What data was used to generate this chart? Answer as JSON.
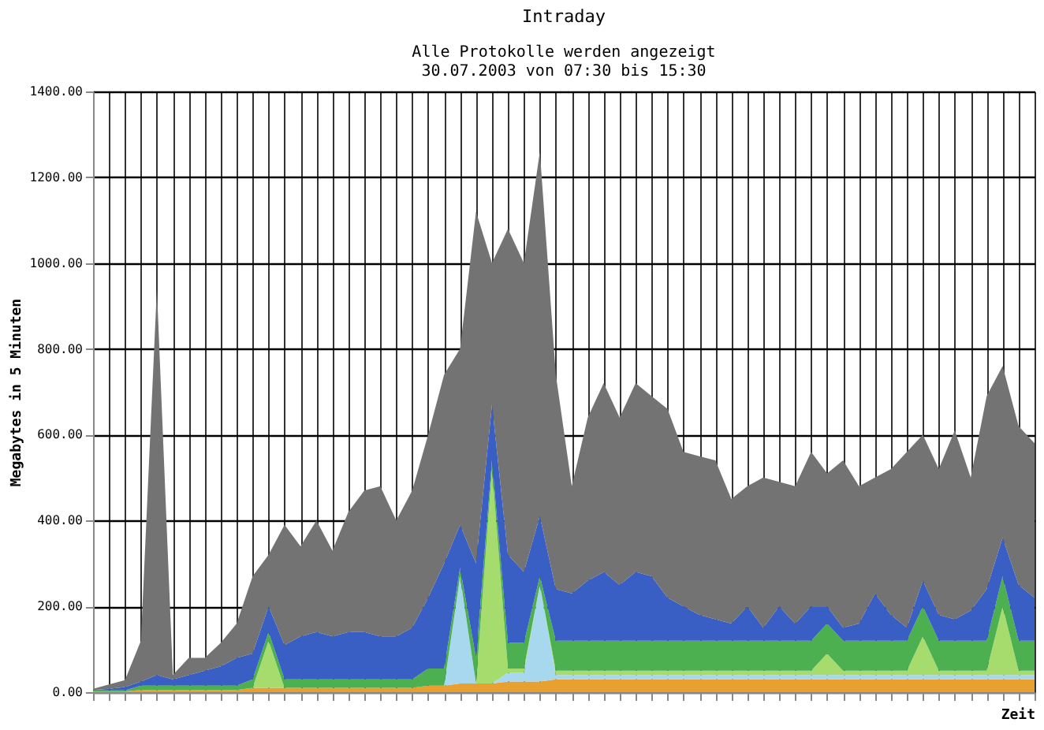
{
  "chart_data": {
    "type": "area",
    "stacked": true,
    "title": "Intraday",
    "subtitle": "Alle Protokolle werden angezeigt\n30.07.2003 von 07:30 bis 15:30",
    "xlabel": "Zeit",
    "ylabel": "Megabytes in 5 Minuten",
    "categories": [
      null,
      null,
      null,
      null,
      null,
      null,
      null,
      null,
      null,
      null,
      null,
      null,
      null,
      null,
      null,
      null,
      null,
      null,
      null,
      null,
      null,
      null,
      null,
      null,
      null,
      null,
      null,
      null,
      null,
      null,
      null,
      null,
      null,
      null,
      null,
      null,
      null,
      null,
      null,
      null,
      null,
      null,
      null,
      null,
      null,
      null,
      null,
      null,
      null,
      null,
      null,
      null,
      null,
      null,
      null,
      null,
      null,
      null,
      null,
      null
    ],
    "tick_labels": "y",
    "grid": true,
    "legend": false,
    "ylim": [
      0,
      1400
    ],
    "yticks": [
      {
        "value": 0,
        "label": "0.00"
      },
      {
        "value": 200,
        "label": "200.00"
      },
      {
        "value": 400,
        "label": "400.00"
      },
      {
        "value": 600,
        "label": "600.00"
      },
      {
        "value": 800,
        "label": "800.00"
      },
      {
        "value": 1000,
        "label": "1000.00"
      },
      {
        "value": 1200,
        "label": "1200.00"
      },
      {
        "value": 1400,
        "label": "1400.00"
      }
    ],
    "series": [
      {
        "color": "#e8a030",
        "values": [
          2,
          2,
          2,
          5,
          5,
          5,
          5,
          5,
          5,
          5,
          10,
          10,
          10,
          10,
          10,
          10,
          10,
          10,
          10,
          10,
          10,
          15,
          15,
          20,
          20,
          20,
          25,
          25,
          25,
          30,
          30,
          30,
          30,
          30,
          30,
          30,
          30,
          30,
          30,
          30,
          30,
          30,
          30,
          30,
          30,
          30,
          30,
          30,
          30,
          30,
          30,
          30,
          30,
          30,
          30,
          30,
          30,
          30,
          30,
          30
        ]
      },
      {
        "color": "#a8d8ee",
        "values": [
          0,
          0,
          0,
          0,
          0,
          0,
          0,
          0,
          0,
          0,
          0,
          0,
          0,
          0,
          0,
          0,
          0,
          0,
          0,
          0,
          0,
          0,
          0,
          250,
          0,
          0,
          20,
          20,
          225,
          10,
          10,
          10,
          10,
          10,
          10,
          10,
          10,
          10,
          10,
          10,
          10,
          10,
          10,
          10,
          10,
          10,
          10,
          10,
          10,
          10,
          10,
          10,
          10,
          10,
          10,
          10,
          10,
          10,
          10,
          10
        ]
      },
      {
        "color": "#a6dc6e",
        "values": [
          0,
          0,
          0,
          0,
          0,
          0,
          0,
          0,
          0,
          0,
          0,
          110,
          0,
          0,
          0,
          0,
          0,
          0,
          0,
          0,
          0,
          0,
          0,
          0,
          0,
          500,
          10,
          10,
          0,
          10,
          10,
          10,
          10,
          10,
          10,
          10,
          10,
          10,
          10,
          10,
          10,
          10,
          10,
          10,
          10,
          10,
          50,
          10,
          10,
          10,
          10,
          10,
          90,
          10,
          10,
          10,
          10,
          160,
          10,
          10
        ]
      },
      {
        "color": "#4caf50",
        "values": [
          2,
          2,
          2,
          10,
          10,
          10,
          10,
          10,
          10,
          10,
          20,
          20,
          20,
          20,
          20,
          20,
          20,
          20,
          20,
          20,
          20,
          40,
          40,
          20,
          60,
          20,
          60,
          60,
          20,
          70,
          70,
          70,
          70,
          70,
          70,
          70,
          70,
          70,
          70,
          70,
          70,
          70,
          70,
          70,
          70,
          70,
          70,
          70,
          70,
          70,
          70,
          70,
          70,
          70,
          70,
          70,
          70,
          70,
          70,
          70
        ]
      },
      {
        "color": "#3a5fc4",
        "values": [
          1,
          4,
          8,
          10,
          25,
          15,
          25,
          35,
          45,
          65,
          60,
          60,
          80,
          100,
          110,
          100,
          110,
          110,
          100,
          100,
          120,
          165,
          245,
          100,
          220,
          130,
          205,
          165,
          140,
          120,
          110,
          140,
          160,
          130,
          160,
          150,
          100,
          80,
          60,
          50,
          40,
          80,
          30,
          80,
          40,
          80,
          40,
          30,
          40,
          110,
          60,
          30,
          60,
          60,
          50,
          70,
          120,
          90,
          130,
          100
        ]
      },
      {
        "color": "#737373",
        "values": [
          3,
          10,
          16,
          95,
          900,
          10,
          40,
          30,
          55,
          80,
          180,
          120,
          280,
          210,
          260,
          200,
          280,
          330,
          350,
          270,
          320,
          380,
          440,
          410,
          820,
          330,
          760,
          720,
          850,
          500,
          250,
          380,
          440,
          390,
          440,
          420,
          440,
          360,
          370,
          370,
          290,
          280,
          350,
          290,
          320,
          360,
          310,
          390,
          320,
          270,
          340,
          410,
          340,
          340,
          440,
          310,
          450,
          400,
          370,
          360
        ]
      }
    ]
  }
}
